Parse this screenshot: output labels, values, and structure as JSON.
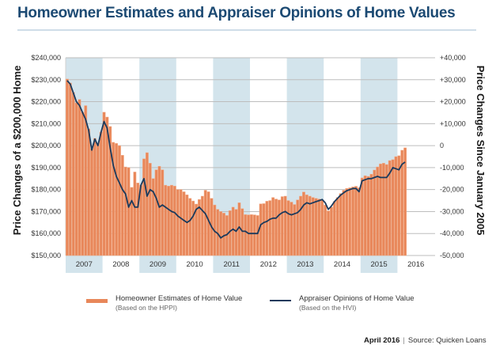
{
  "header": {
    "title": "Homeowner Estimates and Appraiser Opinions of Home Values"
  },
  "chart_data": {
    "type": "bar+line",
    "title": "Homeowner Estimates and Appraiser Opinions of Home Values",
    "ylabel_left": "Price Changes of a $200,000 Home",
    "ylabel_right": "Price Changes Since January 2005",
    "ylim_left": [
      150000,
      240000
    ],
    "ylim_right": [
      -50000,
      40000
    ],
    "left_ticks": [
      "$150,000",
      "$160,000",
      "$170,000",
      "$180,000",
      "$190,000",
      "$200,000",
      "$210,000",
      "$220,000",
      "$230,000",
      "$240,000"
    ],
    "right_ticks": [
      "-50,000",
      "-40,000",
      "-30,000",
      "-20,000",
      "-10,000",
      "0",
      "+10,000",
      "+20,000",
      "+30,000",
      "+40,000"
    ],
    "x_years": [
      "2007",
      "2008",
      "2009",
      "2010",
      "2011",
      "2012",
      "2013",
      "2014",
      "2015",
      "2016"
    ],
    "shaded_years": [
      "2007",
      "2009",
      "2011",
      "2013",
      "2015"
    ],
    "x_start": "Jan 2007",
    "x_frequency": "monthly",
    "grid": true,
    "legend_position": "bottom",
    "colors": {
      "bars": "#e8875a",
      "bar_edge": "#f3ab85",
      "line": "#1b3a5c",
      "band": "#d3e4ec",
      "grid": "#bdbdbd",
      "title": "#1c4a73"
    },
    "series": [
      {
        "name": "Homeowner Estimates of Home Value",
        "note": "(Based on the HPPI)",
        "type": "bar",
        "axis": "left",
        "values": [
          230300,
          228500,
          224200,
          219500,
          221000,
          215200,
          218200,
          207600,
          198600,
          203300,
          201100,
          206200,
          215200,
          213000,
          208700,
          201500,
          201000,
          200000,
          195600,
          190300,
          190000,
          181000,
          188000,
          183000,
          182000,
          194000,
          196800,
          192000,
          185000,
          189000,
          190600,
          189000,
          182000,
          181600,
          182000,
          181600,
          180000,
          180000,
          179000,
          177600,
          176000,
          174800,
          173400,
          175500,
          177000,
          179700,
          179000,
          176000,
          173000,
          171000,
          170000,
          169300,
          168200,
          170400,
          172000,
          171000,
          174000,
          171300,
          168600,
          168500,
          168600,
          168500,
          168200,
          173500,
          173600,
          174700,
          175000,
          176400,
          175700,
          175300,
          176800,
          177000,
          175000,
          174300,
          173200,
          175300,
          177000,
          178900,
          177600,
          177000,
          176400,
          176000,
          175700,
          175300,
          173000,
          170300,
          172000,
          174600,
          176400,
          178200,
          179700,
          180500,
          180800,
          181200,
          181500,
          180800,
          185300,
          186300,
          186000,
          187000,
          188900,
          190300,
          191700,
          192000,
          191400,
          193200,
          193600,
          195000,
          195400,
          197900,
          199000
        ]
      },
      {
        "name": "Appraiser Opinions of Home Value",
        "note": "(Based on the HVI)",
        "type": "line",
        "axis": "left",
        "values": [
          229600,
          228000,
          224000,
          220000,
          218300,
          215000,
          212000,
          207000,
          198000,
          203000,
          200000,
          206000,
          211000,
          208000,
          199000,
          191000,
          186000,
          183000,
          180000,
          178000,
          172000,
          175000,
          172000,
          172000,
          182000,
          185000,
          177000,
          180000,
          179000,
          176000,
          172000,
          173000,
          172000,
          171000,
          170000,
          169500,
          168000,
          167000,
          166000,
          165000,
          166000,
          168000,
          171000,
          172000,
          170500,
          169000,
          166000,
          163000,
          161000,
          160000,
          158000,
          159000,
          159500,
          161000,
          162000,
          161000,
          163000,
          161000,
          161000,
          160000,
          160000,
          160000,
          160000,
          164000,
          165000,
          165500,
          166500,
          167000,
          167000,
          168500,
          169500,
          170000,
          169000,
          168500,
          169000,
          169500,
          171000,
          173000,
          174000,
          173500,
          174000,
          174500,
          175000,
          175500,
          174000,
          171000,
          172500,
          174500,
          176000,
          177500,
          178500,
          179500,
          180000,
          180500,
          180500,
          179000,
          184000,
          184500,
          185000,
          185000,
          185500,
          186000,
          185500,
          185500,
          185500,
          187500,
          190000,
          189500,
          189000,
          191500,
          192500
        ]
      }
    ]
  },
  "legend": {
    "items": [
      {
        "label": "Homeowner Estimates of Home Value",
        "sub": "(Based on the HPPI)"
      },
      {
        "label": "Appraiser Opinions of Home Value",
        "sub": "(Based on the HVI)"
      }
    ]
  },
  "footer": {
    "date": "April 2016",
    "separator": "|",
    "source": "Source: Quicken Loans"
  }
}
